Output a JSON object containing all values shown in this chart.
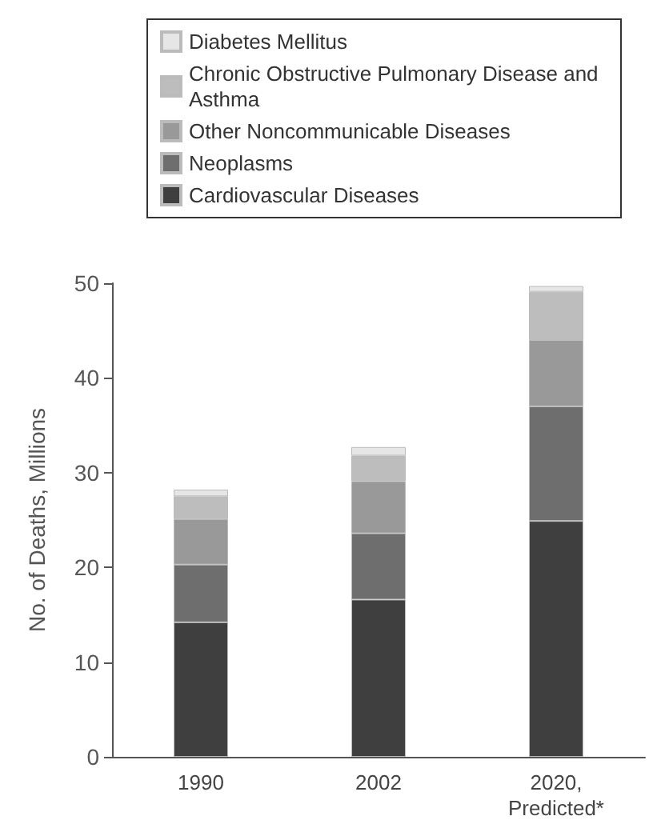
{
  "chart_data": {
    "type": "bar",
    "stacked": true,
    "ylabel": "No. of Deaths, Millions",
    "categories": [
      "1990",
      "2002",
      "2020, Predicted*"
    ],
    "series": [
      {
        "name": "Cardiovascular Diseases",
        "color": "#3f3f3f",
        "values": [
          14.2,
          16.6,
          24.9
        ]
      },
      {
        "name": "Neoplasms",
        "color": "#6e6e6e",
        "values": [
          6.1,
          7.0,
          12.1
        ]
      },
      {
        "name": "Other Noncommunicable Diseases",
        "color": "#999999",
        "values": [
          4.8,
          5.5,
          7.0
        ]
      },
      {
        "name": "Chronic Obstructive Pulmonary Disease and Asthma",
        "color": "#bdbdbd",
        "values": [
          2.4,
          2.7,
          5.1
        ]
      },
      {
        "name": "Diabetes Mellitus",
        "color": "#e6e6e6",
        "values": [
          0.7,
          0.9,
          0.6
        ]
      }
    ],
    "ylim": [
      0,
      50
    ],
    "yticks": [
      0,
      10,
      20,
      30,
      40,
      50
    ],
    "grid": false,
    "legend": "top"
  }
}
